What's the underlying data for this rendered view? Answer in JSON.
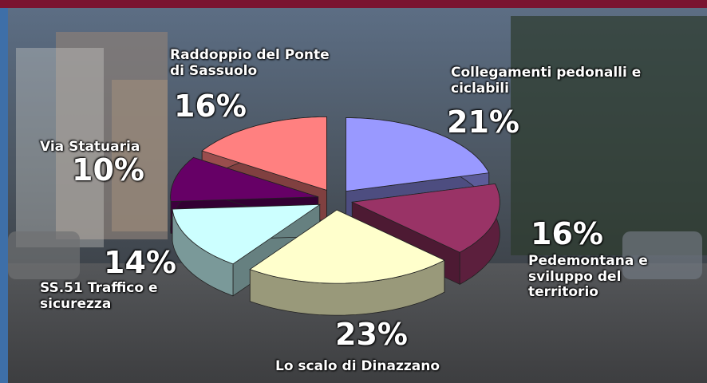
{
  "chart_data": {
    "type": "pie3d",
    "categories": [
      "Collegamenti pedonalli e ciclabili",
      "Pedemontana e sviluppo del territorio",
      "Lo scalo di Dinazzano",
      "SS.51 Traffico e sicurezza",
      "Via Statuaria",
      "Raddoppio del Ponte di Sassuolo"
    ],
    "values": [
      21,
      16,
      23,
      14,
      10,
      16
    ],
    "value_labels": [
      "21%",
      "16%",
      "23%",
      "14%",
      "10%",
      "16%"
    ],
    "colors": [
      "#9999ff",
      "#993366",
      "#ffffcc",
      "#ccffff",
      "#660066",
      "#ff8080"
    ]
  }
}
